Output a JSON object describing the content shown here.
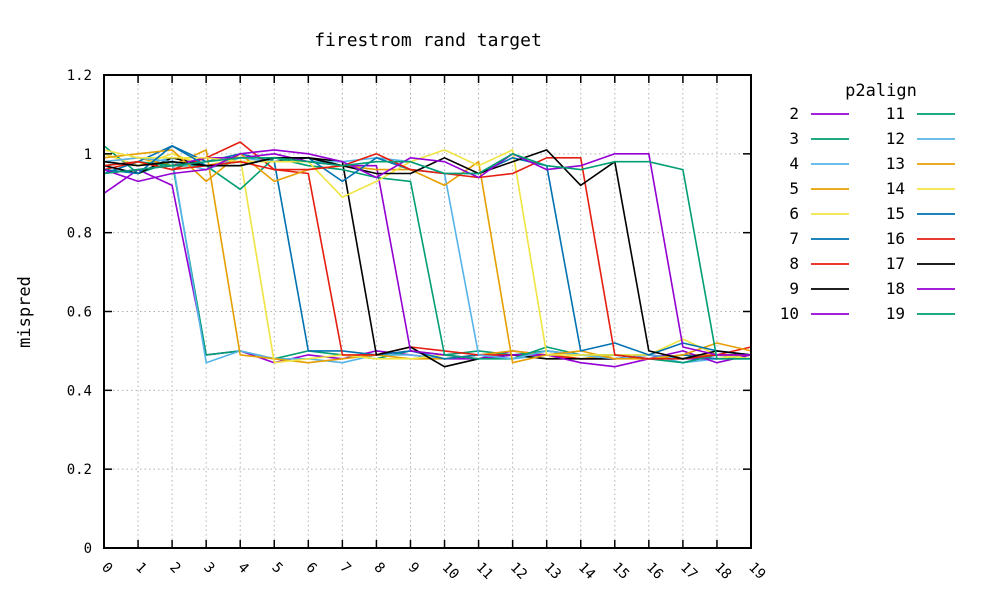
{
  "chart_data": {
    "type": "line",
    "title": "firestrom rand target",
    "xlabel": "",
    "ylabel": "mispred",
    "legend_title": "p2align",
    "legend_placement": "right",
    "grid": true,
    "xlim": [
      0,
      19
    ],
    "ylim": [
      0,
      1.2
    ],
    "x": [
      0,
      1,
      2,
      3,
      4,
      5,
      6,
      7,
      8,
      9,
      10,
      11,
      12,
      13,
      14,
      15,
      16,
      17,
      18,
      19
    ],
    "x_tick_labels": [
      "0",
      "1",
      "2",
      "3",
      "4",
      "5",
      "6",
      "7",
      "8",
      "9",
      "10",
      "11",
      "12",
      "13",
      "14",
      "15",
      "16",
      "17",
      "18",
      "19"
    ],
    "y_ticks": [
      0,
      0.2,
      0.4,
      0.6,
      0.8,
      1.0,
      1.2
    ],
    "y_tick_labels": [
      "0",
      "0.2",
      "0.4",
      "0.6",
      "0.8",
      "1",
      "1.2"
    ],
    "series": [
      {
        "name": "2",
        "color": "#9400d3",
        "values": [
          0.9,
          0.96,
          0.92,
          0.49,
          0.5,
          0.47,
          0.49,
          0.48,
          0.5,
          0.49,
          0.48,
          0.48,
          0.5,
          0.49,
          0.48,
          0.48,
          0.49,
          0.48,
          0.48,
          0.49
        ]
      },
      {
        "name": "3",
        "color": "#009e73",
        "values": [
          1.02,
          0.95,
          0.98,
          0.49,
          0.5,
          0.48,
          0.5,
          0.49,
          0.48,
          0.5,
          0.49,
          0.5,
          0.49,
          0.5,
          0.49,
          0.49,
          0.48,
          0.48,
          0.49,
          0.48
        ]
      },
      {
        "name": "4",
        "color": "#56b4e9",
        "values": [
          1.0,
          0.97,
          0.99,
          0.47,
          0.5,
          0.48,
          0.48,
          0.47,
          0.49,
          0.49,
          0.48,
          0.49,
          0.48,
          0.49,
          0.48,
          0.49,
          0.49,
          0.47,
          0.48,
          0.49
        ]
      },
      {
        "name": "5",
        "color": "#e69f00",
        "values": [
          0.98,
          0.99,
          0.97,
          1.01,
          0.49,
          0.48,
          0.47,
          0.48,
          0.49,
          0.48,
          0.48,
          0.49,
          0.5,
          0.49,
          0.48,
          0.49,
          0.48,
          0.49,
          0.49,
          0.48
        ]
      },
      {
        "name": "6",
        "color": "#f0e442",
        "values": [
          1.0,
          0.97,
          1.0,
          0.97,
          0.99,
          0.47,
          0.48,
          0.49,
          0.48,
          0.48,
          0.49,
          0.48,
          0.49,
          0.48,
          0.49,
          0.49,
          0.48,
          0.49,
          0.48,
          0.49
        ]
      },
      {
        "name": "7",
        "color": "#0072b2",
        "values": [
          0.95,
          0.98,
          1.02,
          0.98,
          1.0,
          0.98,
          0.5,
          0.5,
          0.49,
          0.5,
          0.48,
          0.49,
          0.48,
          0.5,
          0.49,
          0.49,
          0.48,
          0.49,
          0.48,
          0.48
        ]
      },
      {
        "name": "8",
        "color": "#e51e10",
        "values": [
          0.96,
          0.98,
          0.96,
          0.99,
          1.03,
          0.96,
          0.95,
          0.49,
          0.49,
          0.51,
          0.5,
          0.49,
          0.49,
          0.49,
          0.48,
          0.48,
          0.49,
          0.48,
          0.49,
          0.51
        ]
      },
      {
        "name": "9",
        "color": "#000000",
        "values": [
          0.97,
          0.95,
          0.99,
          0.97,
          0.98,
          0.98,
          0.99,
          0.98,
          0.49,
          0.51,
          0.46,
          0.48,
          0.49,
          0.48,
          0.48,
          0.48,
          0.49,
          0.48,
          0.49,
          0.48
        ]
      },
      {
        "name": "10",
        "color": "#9400d3",
        "values": [
          0.95,
          0.96,
          0.97,
          0.99,
          0.99,
          1.0,
          0.98,
          0.97,
          0.97,
          0.5,
          0.49,
          0.48,
          0.49,
          0.49,
          0.47,
          0.46,
          0.48,
          0.5,
          0.47,
          0.49
        ]
      },
      {
        "name": "11",
        "color": "#009e73",
        "values": [
          0.97,
          0.98,
          0.97,
          0.97,
          0.91,
          0.99,
          0.97,
          0.96,
          0.94,
          0.93,
          0.49,
          0.48,
          0.48,
          0.51,
          0.49,
          0.49,
          0.48,
          0.47,
          0.49,
          0.48
        ]
      },
      {
        "name": "12",
        "color": "#56b4e9",
        "values": [
          0.98,
          0.99,
          0.98,
          0.96,
          0.99,
          0.98,
          0.98,
          0.98,
          0.99,
          0.98,
          0.95,
          0.49,
          0.48,
          0.5,
          0.49,
          0.48,
          0.49,
          0.48,
          0.49,
          0.48
        ]
      },
      {
        "name": "13",
        "color": "#e69f00",
        "values": [
          0.99,
          1.0,
          1.01,
          0.93,
          1.0,
          0.93,
          0.96,
          0.97,
          0.96,
          0.96,
          0.92,
          0.98,
          0.47,
          0.49,
          0.5,
          0.48,
          0.48,
          0.49,
          0.52,
          0.5
        ]
      },
      {
        "name": "14",
        "color": "#f0e442",
        "values": [
          1.01,
          0.99,
          0.99,
          0.99,
          0.98,
          0.98,
          0.98,
          0.89,
          0.93,
          0.98,
          1.01,
          0.97,
          1.01,
          0.49,
          0.49,
          0.49,
          0.49,
          0.53,
          0.49,
          0.48
        ]
      },
      {
        "name": "15",
        "color": "#0072b2",
        "values": [
          0.96,
          0.95,
          1.02,
          0.97,
          0.97,
          0.99,
          0.99,
          0.93,
          0.99,
          0.96,
          0.95,
          0.95,
          0.99,
          0.97,
          0.5,
          0.52,
          0.49,
          0.52,
          0.5,
          0.49
        ]
      },
      {
        "name": "16",
        "color": "#e51e10",
        "values": [
          0.97,
          0.98,
          0.96,
          0.97,
          0.98,
          0.96,
          0.96,
          0.97,
          1.0,
          0.96,
          0.95,
          0.94,
          0.95,
          0.99,
          0.99,
          0.49,
          0.48,
          0.48,
          0.49,
          0.49
        ]
      },
      {
        "name": "17",
        "color": "#000000",
        "values": [
          0.98,
          0.97,
          0.98,
          0.97,
          0.97,
          0.99,
          0.99,
          0.97,
          0.95,
          0.95,
          0.99,
          0.95,
          0.98,
          1.01,
          0.92,
          0.98,
          0.5,
          0.48,
          0.5,
          0.49
        ]
      },
      {
        "name": "18",
        "color": "#9400d3",
        "values": [
          0.96,
          0.93,
          0.95,
          0.96,
          1.0,
          1.01,
          1.0,
          0.98,
          0.94,
          0.99,
          0.98,
          0.94,
          1.0,
          0.96,
          0.97,
          1.0,
          1.0,
          0.51,
          0.49,
          0.49
        ]
      },
      {
        "name": "19",
        "color": "#009e73",
        "values": [
          0.95,
          0.96,
          0.97,
          0.98,
          0.99,
          0.99,
          0.98,
          0.97,
          0.98,
          0.98,
          0.95,
          0.95,
          1.0,
          0.97,
          0.96,
          0.98,
          0.98,
          0.96,
          0.48,
          0.48
        ]
      }
    ]
  }
}
